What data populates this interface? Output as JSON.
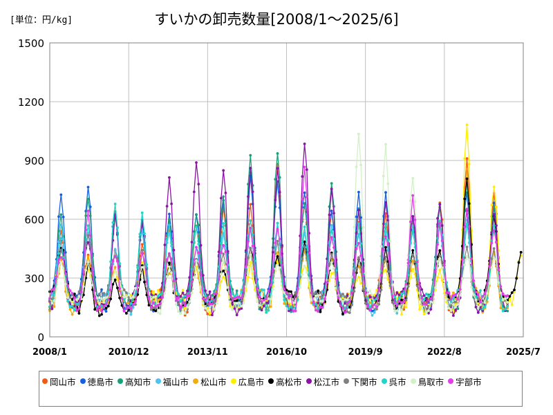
{
  "unit_label": "[単位：円/kg]",
  "chart_data": {
    "type": "line",
    "title": "すいかの卸売数量[2008/1～2025/6]",
    "xlabel": "",
    "ylabel": "",
    "ylim": [
      0,
      1500
    ],
    "yticks": [
      0,
      300,
      600,
      900,
      1200,
      1500
    ],
    "ytick_labels": [
      "0",
      "300",
      "600",
      "900",
      "1200",
      "1500"
    ],
    "xlim": [
      "2008/1",
      "2025/7"
    ],
    "xticks": [
      "2008/1",
      "2010/12",
      "2013/11",
      "2016/10",
      "2019/9",
      "2022/8",
      "2025/7"
    ],
    "grid": true,
    "legend_position": "bottom",
    "series": [
      {
        "name": "岡山市",
        "color": "#f25a12",
        "peaks": [
          [
            "2008/6",
            560
          ],
          [
            "2009/6",
            410
          ],
          [
            "2010/6",
            460
          ],
          [
            "2011/6",
            480
          ],
          [
            "2012/6",
            560
          ],
          [
            "2013/6",
            560
          ],
          [
            "2014/6",
            650
          ],
          [
            "2015/6",
            700
          ],
          [
            "2016/6",
            880
          ],
          [
            "2017/6",
            700
          ],
          [
            "2018/6",
            640
          ],
          [
            "2019/6",
            560
          ],
          [
            "2020/6",
            620
          ],
          [
            "2021/6",
            560
          ],
          [
            "2022/6",
            690
          ],
          [
            "2023/6",
            920
          ],
          [
            "2024/6",
            720
          ]
        ]
      },
      {
        "name": "徳島市",
        "color": "#1560e0",
        "peaks": [
          [
            "2008/6",
            720
          ],
          [
            "2009/6",
            750
          ],
          [
            "2010/6",
            640
          ],
          [
            "2011/6",
            590
          ],
          [
            "2012/6",
            620
          ],
          [
            "2013/6",
            620
          ],
          [
            "2014/6",
            680
          ],
          [
            "2015/6",
            800
          ],
          [
            "2016/6",
            800
          ],
          [
            "2017/6",
            760
          ],
          [
            "2018/6",
            660
          ],
          [
            "2019/6",
            720
          ],
          [
            "2020/6",
            720
          ],
          [
            "2021/6",
            640
          ],
          [
            "2022/6",
            690
          ],
          [
            "2023/6",
            740
          ],
          [
            "2024/6",
            660
          ]
        ]
      },
      {
        "name": "高知市",
        "color": "#19a079",
        "peaks": [
          [
            "2008/6",
            610
          ],
          [
            "2009/6",
            720
          ],
          [
            "2010/6",
            640
          ],
          [
            "2011/6",
            600
          ],
          [
            "2012/6",
            580
          ],
          [
            "2013/6",
            640
          ],
          [
            "2014/6",
            700
          ],
          [
            "2015/6",
            910
          ],
          [
            "2016/6",
            950
          ],
          [
            "2017/6",
            700
          ],
          [
            "2018/6",
            770
          ],
          [
            "2019/6",
            640
          ],
          [
            "2020/6",
            580
          ],
          [
            "2021/6",
            600
          ],
          [
            "2022/6",
            640
          ],
          [
            "2023/6",
            780
          ],
          [
            "2024/6",
            650
          ]
        ]
      },
      {
        "name": "福山市",
        "color": "#4cc3f0",
        "peaks": [
          [
            "2008/6",
            580
          ],
          [
            "2009/6",
            520
          ],
          [
            "2010/6",
            440
          ],
          [
            "2011/6",
            560
          ],
          [
            "2012/6",
            540
          ],
          [
            "2013/6",
            470
          ],
          [
            "2014/6",
            530
          ],
          [
            "2015/6",
            560
          ],
          [
            "2016/6",
            560
          ],
          [
            "2017/6",
            540
          ],
          [
            "2018/6",
            560
          ],
          [
            "2019/6",
            520
          ],
          [
            "2020/6",
            540
          ],
          [
            "2021/6",
            560
          ],
          [
            "2022/6",
            560
          ],
          [
            "2023/6",
            580
          ],
          [
            "2024/6",
            600
          ]
        ]
      },
      {
        "name": "松山市",
        "color": "#f2ac12",
        "peaks": [
          [
            "2008/6",
            400
          ],
          [
            "2009/6",
            410
          ],
          [
            "2010/6",
            360
          ],
          [
            "2011/6",
            380
          ],
          [
            "2012/6",
            340
          ],
          [
            "2013/6",
            340
          ],
          [
            "2014/6",
            370
          ],
          [
            "2015/6",
            430
          ],
          [
            "2016/6",
            450
          ],
          [
            "2017/6",
            440
          ],
          [
            "2018/6",
            420
          ],
          [
            "2019/6",
            380
          ],
          [
            "2020/6",
            400
          ],
          [
            "2021/6",
            400
          ],
          [
            "2022/6",
            420
          ],
          [
            "2023/6",
            860
          ],
          [
            "2024/6",
            420
          ]
        ]
      },
      {
        "name": "広島市",
        "color": "#ffee00",
        "peaks": [
          [
            "2008/6",
            460
          ],
          [
            "2009/6",
            360
          ],
          [
            "2010/6",
            340
          ],
          [
            "2011/6",
            360
          ],
          [
            "2012/6",
            380
          ],
          [
            "2013/6",
            350
          ],
          [
            "2014/6",
            330
          ],
          [
            "2015/6",
            360
          ],
          [
            "2016/6",
            380
          ],
          [
            "2017/6",
            360
          ],
          [
            "2018/6",
            340
          ],
          [
            "2019/6",
            320
          ],
          [
            "2020/6",
            340
          ],
          [
            "2021/6",
            340
          ],
          [
            "2022/6",
            350
          ],
          [
            "2023/6",
            1080
          ],
          [
            "2024/6",
            770
          ],
          [
            "2025/6",
            430
          ]
        ]
      },
      {
        "name": "高松市",
        "color": "#000000",
        "peaks": [
          [
            "2008/6",
            470
          ],
          [
            "2009/6",
            370
          ],
          [
            "2010/6",
            300
          ],
          [
            "2011/6",
            340
          ],
          [
            "2012/6",
            360
          ],
          [
            "2013/6",
            370
          ],
          [
            "2014/6",
            360
          ],
          [
            "2015/6",
            440
          ],
          [
            "2016/6",
            420
          ],
          [
            "2017/6",
            470
          ],
          [
            "2018/6",
            420
          ],
          [
            "2019/6",
            400
          ],
          [
            "2020/6",
            440
          ],
          [
            "2021/6",
            440
          ],
          [
            "2022/6",
            450
          ],
          [
            "2023/6",
            830
          ],
          [
            "2024/6",
            620
          ],
          [
            "2025/6",
            440
          ]
        ]
      },
      {
        "name": "松江市",
        "color": "#8b13a5",
        "peaks": [
          [
            "2008/6",
            480
          ],
          [
            "2009/6",
            500
          ],
          [
            "2010/6",
            600
          ],
          [
            "2011/6",
            600
          ],
          [
            "2012/6",
            810
          ],
          [
            "2013/6",
            890
          ],
          [
            "2014/6",
            860
          ],
          [
            "2015/6",
            870
          ],
          [
            "2016/6",
            860
          ],
          [
            "2017/6",
            1000
          ],
          [
            "2018/6",
            750
          ],
          [
            "2019/6",
            630
          ],
          [
            "2020/6",
            700
          ],
          [
            "2021/6",
            620
          ],
          [
            "2022/6",
            700
          ],
          [
            "2023/6",
            660
          ],
          [
            "2024/6",
            640
          ]
        ]
      },
      {
        "name": "下関市",
        "color": "#808080",
        "peaks": [
          [
            "2008/6",
            450
          ],
          [
            "2009/6",
            520
          ],
          [
            "2010/6",
            420
          ],
          [
            "2011/6",
            420
          ],
          [
            "2012/6",
            440
          ],
          [
            "2013/6",
            400
          ],
          [
            "2014/6",
            420
          ],
          [
            "2015/6",
            470
          ],
          [
            "2016/6",
            480
          ],
          [
            "2017/6",
            440
          ],
          [
            "2018/6",
            430
          ],
          [
            "2019/6",
            400
          ],
          [
            "2020/6",
            410
          ],
          [
            "2021/6",
            420
          ],
          [
            "2022/6",
            430
          ],
          [
            "2023/6",
            440
          ],
          [
            "2024/6",
            430
          ]
        ]
      },
      {
        "name": "呉市",
        "color": "#22d4c9",
        "peaks": [
          [
            "2008/6",
            500
          ],
          [
            "2009/6",
            560
          ],
          [
            "2010/6",
            660
          ],
          [
            "2011/6",
            620
          ],
          [
            "2012/6",
            560
          ],
          [
            "2013/6",
            540
          ],
          [
            "2014/6",
            560
          ],
          [
            "2015/6",
            580
          ],
          [
            "2016/6",
            560
          ],
          [
            "2017/6",
            560
          ],
          [
            "2018/6",
            560
          ],
          [
            "2019/6",
            560
          ],
          [
            "2020/6",
            560
          ],
          [
            "2021/6",
            540
          ],
          [
            "2022/6",
            580
          ],
          [
            "2023/6",
            560
          ],
          [
            "2024/6",
            560
          ]
        ]
      },
      {
        "name": "鳥取市",
        "color": "#d3f0c8",
        "peaks": [
          [
            "2008/6",
            390
          ],
          [
            "2009/6",
            380
          ],
          [
            "2010/6",
            360
          ],
          [
            "2011/6",
            370
          ],
          [
            "2012/6",
            380
          ],
          [
            "2013/6",
            370
          ],
          [
            "2014/6",
            380
          ],
          [
            "2015/6",
            400
          ],
          [
            "2016/6",
            390
          ],
          [
            "2017/6",
            380
          ],
          [
            "2018/6",
            380
          ],
          [
            "2019/6",
            1050
          ],
          [
            "2020/6",
            970
          ],
          [
            "2021/6",
            810
          ],
          [
            "2022/6",
            420
          ],
          [
            "2023/6",
            430
          ],
          [
            "2024/6",
            420
          ]
        ]
      },
      {
        "name": "宇部市",
        "color": "#e23ee6",
        "peaks": [
          [
            "2008/6",
            420
          ],
          [
            "2009/6",
            640
          ],
          [
            "2010/6",
            430
          ],
          [
            "2011/6",
            440
          ],
          [
            "2012/6",
            450
          ],
          [
            "2013/6",
            460
          ],
          [
            "2014/6",
            480
          ],
          [
            "2015/6",
            560
          ],
          [
            "2016/6",
            540
          ],
          [
            "2017/6",
            860
          ],
          [
            "2018/6",
            520
          ],
          [
            "2019/6",
            500
          ],
          [
            "2020/6",
            520
          ],
          [
            "2021/6",
            700
          ],
          [
            "2022/6",
            560
          ],
          [
            "2023/6",
            660
          ],
          [
            "2024/6",
            560
          ]
        ]
      }
    ]
  }
}
